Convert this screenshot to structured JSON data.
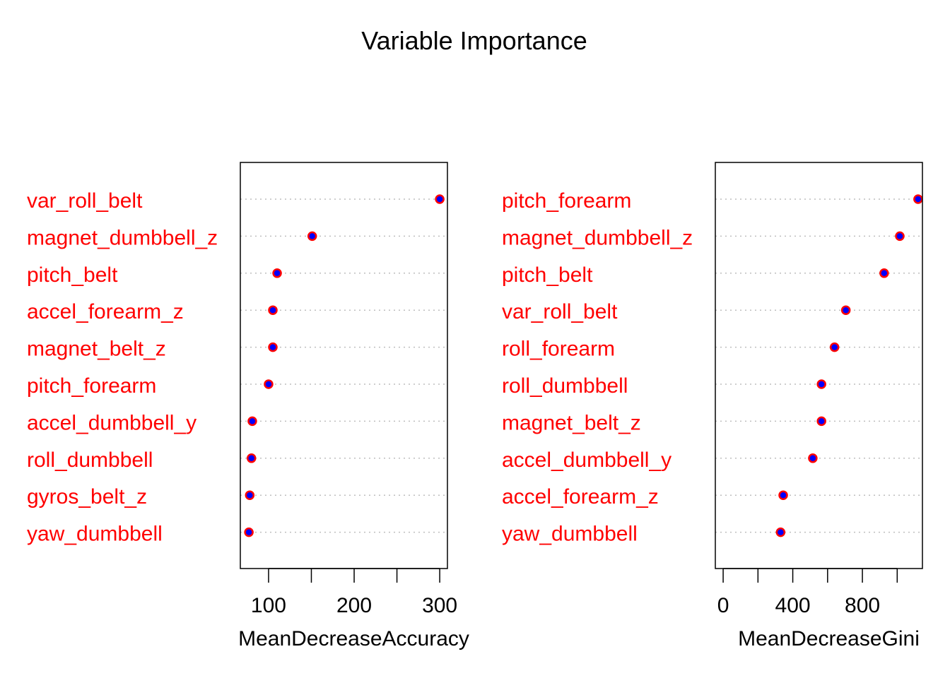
{
  "chart_data": {
    "type": "scatter",
    "title": "Variable Importance",
    "panels": [
      {
        "xlabel": "MeanDecreaseAccuracy",
        "xlim": [
          67,
          309
        ],
        "ticks": [
          100,
          150,
          200,
          250,
          300
        ],
        "tick_labels": [
          "100",
          "",
          "200",
          "",
          "300"
        ],
        "categories": [
          "var_roll_belt",
          "magnet_dumbbell_z",
          "pitch_belt",
          "accel_forearm_z",
          "magnet_belt_z",
          "pitch_forearm",
          "accel_dumbbell_y",
          "roll_dumbbell",
          "gyros_belt_z",
          "yaw_dumbbell"
        ],
        "values": [
          300,
          151,
          110,
          105,
          105,
          100,
          81,
          80,
          78,
          77
        ]
      },
      {
        "xlabel": "MeanDecreaseGini",
        "xlim": [
          -45,
          1145
        ],
        "ticks": [
          0,
          200,
          400,
          600,
          800,
          1000
        ],
        "tick_labels": [
          "0",
          "",
          "400",
          "",
          "800",
          ""
        ],
        "categories": [
          "pitch_forearm",
          "magnet_dumbbell_z",
          "pitch_belt",
          "var_roll_belt",
          "roll_forearm",
          "roll_dumbbell",
          "magnet_belt_z",
          "accel_dumbbell_y",
          "accel_forearm_z",
          "yaw_dumbbell"
        ],
        "values": [
          1120,
          1015,
          925,
          705,
          640,
          565,
          565,
          515,
          345,
          330
        ]
      }
    ],
    "colors": {
      "label": "#ff0000",
      "point_fill": "#0000ff",
      "point_border": "#ff0000",
      "gridline": "#bebebe",
      "axis": "#000000"
    }
  }
}
